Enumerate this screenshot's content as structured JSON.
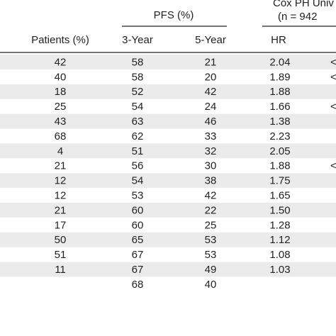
{
  "header": {
    "group_cox": "Cox PH Univ",
    "group_cox_n": "(n = 942",
    "group_pfs": "PFS (%)",
    "columns": [
      "Patients (%)",
      "3-Year",
      "5-Year",
      "HR"
    ]
  },
  "table": {
    "rows": [
      [
        "42",
        "58",
        "21",
        "2.04",
        "<"
      ],
      [
        "40",
        "58",
        "20",
        "1.89",
        "<"
      ],
      [
        "18",
        "52",
        "42",
        "1.88",
        null
      ],
      [
        "25",
        "54",
        "24",
        "1.66",
        "<"
      ],
      [
        "43",
        "63",
        "46",
        "1.38",
        null
      ],
      [
        "68",
        "62",
        "33",
        "2.23",
        null
      ],
      [
        "4",
        "51",
        "32",
        "2.05",
        null
      ],
      [
        "21",
        "56",
        "30",
        "1.88",
        "<"
      ],
      [
        "12",
        "54",
        "38",
        "1.75",
        null
      ],
      [
        "12",
        "53",
        "42",
        "1.65",
        null
      ],
      [
        "21",
        "60",
        "22",
        "1.50",
        null
      ],
      [
        "17",
        "60",
        "25",
        "1.28",
        null
      ],
      [
        "50",
        "65",
        "53",
        "1.12",
        null
      ],
      [
        "51",
        "67",
        "53",
        "1.08",
        null
      ],
      [
        "11",
        "67",
        "49",
        "1.03",
        null
      ],
      [
        null,
        "68",
        "40",
        null,
        null
      ]
    ]
  }
}
